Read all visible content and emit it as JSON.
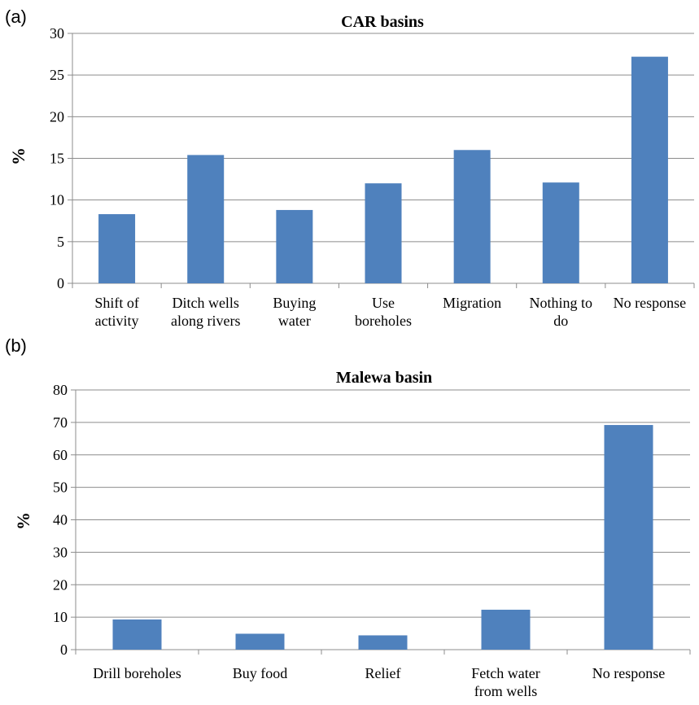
{
  "chart_data": [
    {
      "panel": "(a)",
      "type": "bar",
      "title": "CAR basins",
      "ylabel": "%",
      "xlabel": "",
      "ylim": [
        0,
        30
      ],
      "yticks": [
        0,
        5,
        10,
        15,
        20,
        25,
        30
      ],
      "grid": true,
      "categories": [
        [
          "Shift of",
          "activity"
        ],
        [
          "Ditch wells",
          "along rivers"
        ],
        [
          "Buying",
          "water"
        ],
        [
          "Use",
          "boreholes"
        ],
        [
          "Migration"
        ],
        [
          "Nothing to",
          "do"
        ],
        [
          "No response"
        ]
      ],
      "values": [
        8.3,
        15.4,
        8.8,
        12.0,
        16.0,
        12.1,
        27.2
      ],
      "colors": {
        "bar": "#4f81bd",
        "grid": "#8c8c8c"
      }
    },
    {
      "panel": "(b)",
      "type": "bar",
      "title": "Malewa basin",
      "ylabel": "%",
      "xlabel": "",
      "ylim": [
        0,
        80
      ],
      "yticks": [
        0,
        10,
        20,
        30,
        40,
        50,
        60,
        70,
        80
      ],
      "grid": true,
      "categories": [
        [
          "Drill boreholes"
        ],
        [
          "Buy food"
        ],
        [
          "Relief"
        ],
        [
          "Fetch water",
          "from wells"
        ],
        [
          "No response"
        ]
      ],
      "values": [
        9.3,
        4.9,
        4.4,
        12.3,
        69.2
      ],
      "colors": {
        "bar": "#4f81bd",
        "grid": "#8c8c8c"
      }
    }
  ]
}
